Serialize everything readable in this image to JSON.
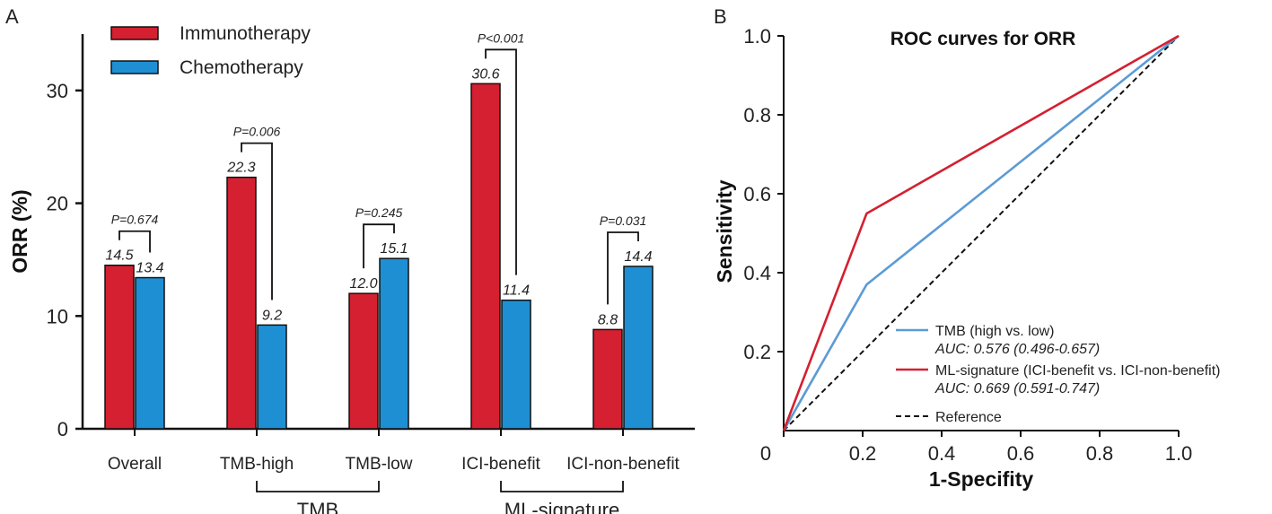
{
  "chart_data": [
    {
      "type": "bar",
      "panel_label": "A",
      "ylabel": "ORR (%)",
      "ylim": [
        0,
        35
      ],
      "yticks": [
        0,
        10,
        20,
        30
      ],
      "categories": [
        "Overall",
        "TMB-high",
        "TMB-low",
        "ICI-benefit",
        "ICI-non-benefit"
      ],
      "series": [
        {
          "name": "Immunotherapy",
          "color": "#d42030",
          "values": [
            14.5,
            22.3,
            12.0,
            30.6,
            8.8
          ],
          "labels": [
            "14.5",
            "22.3",
            "12.0",
            "30.6",
            "8.8"
          ]
        },
        {
          "name": "Chemotherapy",
          "color": "#1f8fd4",
          "values": [
            13.4,
            9.2,
            15.1,
            11.4,
            14.4
          ],
          "labels": [
            "13.4",
            "9.2",
            "15.1",
            "11.4",
            "14.4"
          ]
        }
      ],
      "pvalues": [
        "P=0.674",
        "P=0.006",
        "P=0.245",
        "P<0.001",
        "P=0.031"
      ],
      "groups": [
        {
          "label": "TMB",
          "from": 1,
          "to": 2
        },
        {
          "label": "ML-signature",
          "from": 3,
          "to": 4
        }
      ]
    },
    {
      "type": "line",
      "panel_label": "B",
      "title": "ROC curves for ORR",
      "xlabel": "1-Specifity",
      "ylabel": "Sensitivity",
      "xlim": [
        0,
        1
      ],
      "ylim": [
        0,
        1
      ],
      "xticks": [
        0,
        0.2,
        0.4,
        0.6,
        0.8,
        1.0
      ],
      "xtick_labels": [
        "0",
        "0.2",
        "0.4",
        "0.6",
        "0.8",
        "1.0"
      ],
      "yticks": [
        0.2,
        0.4,
        0.6,
        0.8,
        1.0
      ],
      "ytick_labels": [
        "0.2",
        "0.4",
        "0.6",
        "0.8",
        "1.0"
      ],
      "series": [
        {
          "name": "TMB (high vs. low)",
          "auc": "AUC: 0.576 (0.496-0.657)",
          "color": "#5b9bd5",
          "x": [
            0,
            0.21,
            1
          ],
          "y": [
            0,
            0.37,
            1
          ]
        },
        {
          "name": "ML-signature (ICI-benefit vs. ICI-non-benefit)",
          "auc": "AUC: 0.669 (0.591-0.747)",
          "color": "#d42030",
          "x": [
            0,
            0.21,
            1
          ],
          "y": [
            0,
            0.55,
            1
          ]
        },
        {
          "name": "Reference",
          "color": "#111111",
          "dashed": true,
          "x": [
            0,
            1
          ],
          "y": [
            0,
            1
          ]
        }
      ]
    }
  ]
}
